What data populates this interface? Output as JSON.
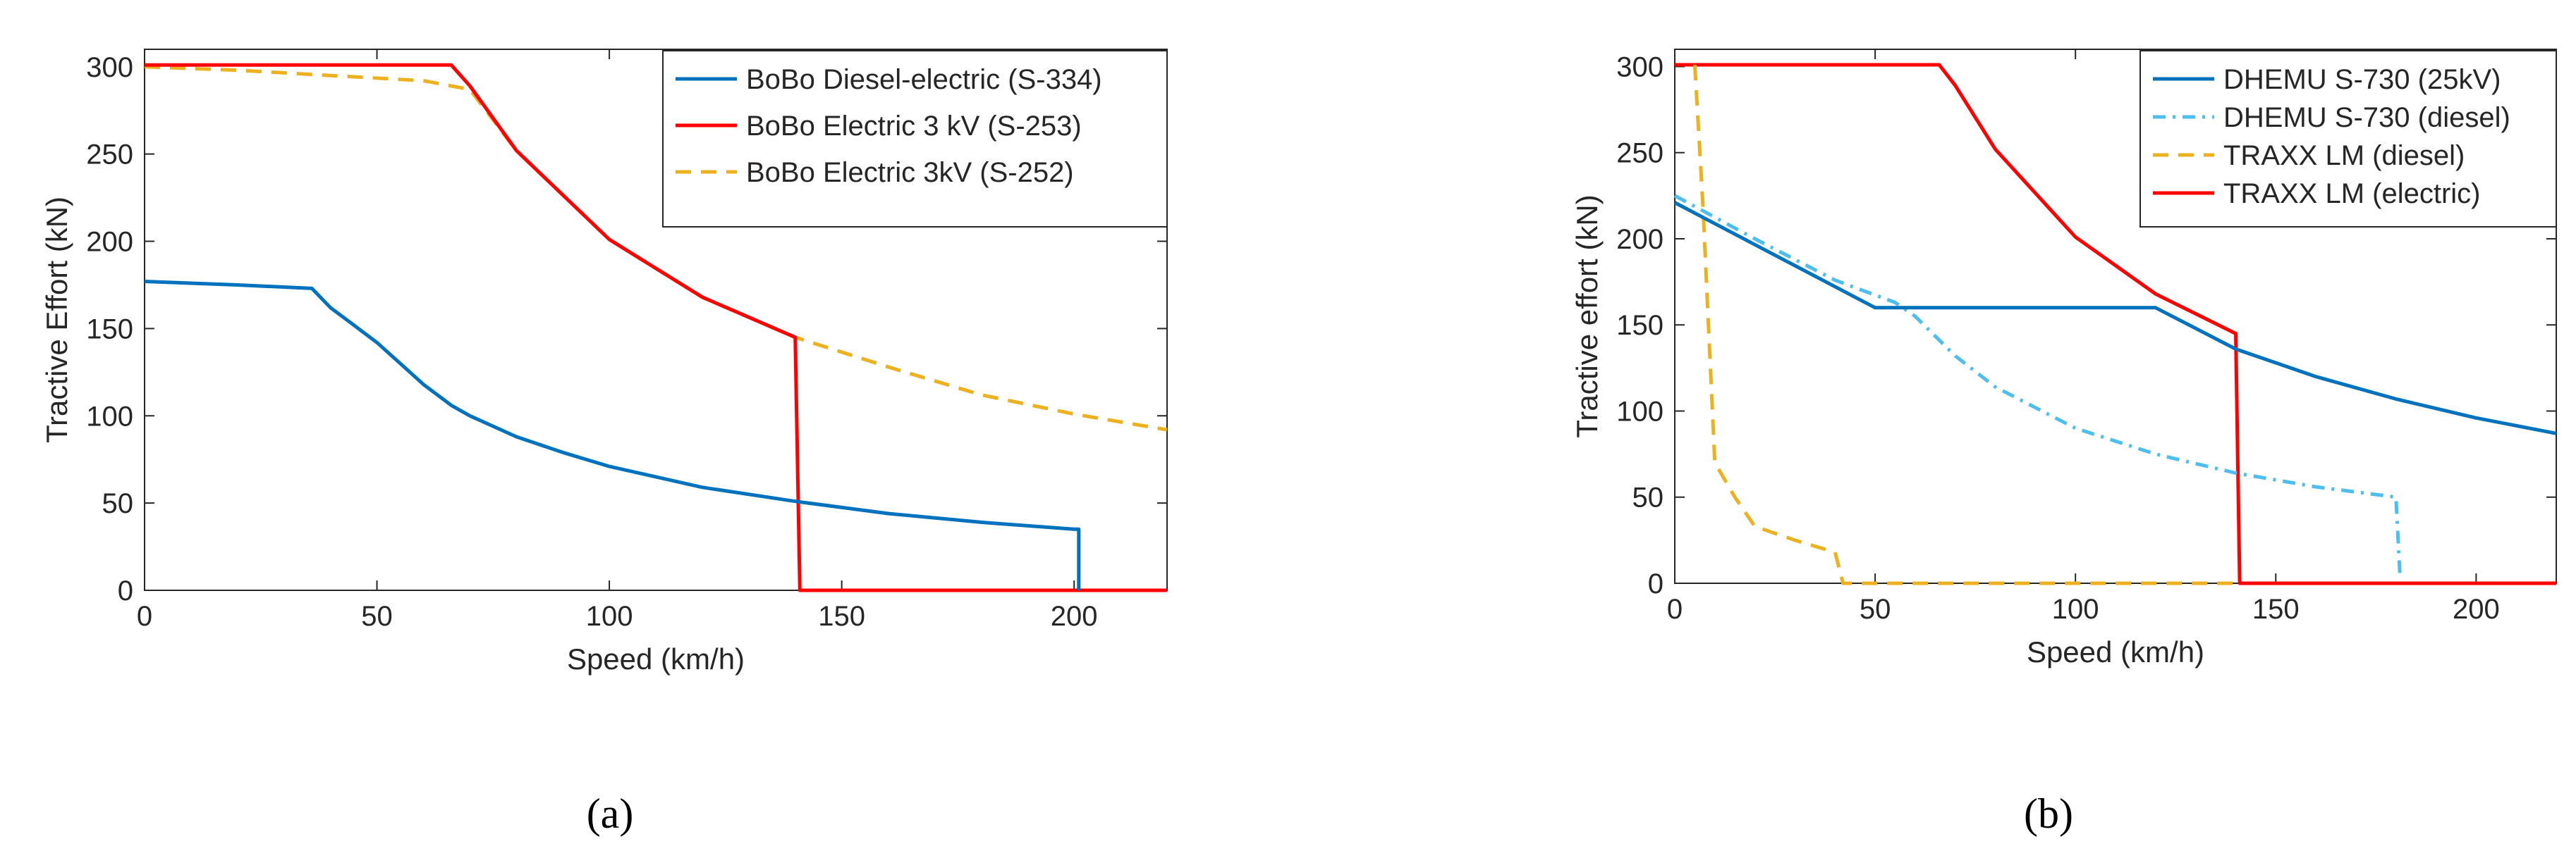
{
  "chart_data": [
    {
      "type": "line",
      "panel_label": "(a)",
      "xlabel": "Speed (km/h)",
      "ylabel": "Tractive Effort (kN)",
      "xlim": [
        0,
        220
      ],
      "ylim": [
        0,
        310
      ],
      "xticks": [
        0,
        50,
        100,
        150,
        200
      ],
      "yticks": [
        0,
        50,
        100,
        150,
        200,
        250,
        300
      ],
      "grid": false,
      "legend_position": "top-right",
      "series": [
        {
          "name": "BoBo Diesel-electric (S-334)",
          "color": "#0072BD",
          "style": "solid",
          "x": [
            0,
            20,
            36,
            40,
            45,
            50,
            55,
            60,
            66,
            70,
            80,
            90,
            100,
            120,
            140,
            160,
            180,
            200,
            201,
            201
          ],
          "y": [
            177,
            175,
            173,
            162,
            152,
            142,
            130,
            118,
            106,
            100,
            88,
            79,
            71,
            59,
            51,
            44,
            39,
            35,
            35,
            0
          ]
        },
        {
          "name": "BoBo Electric 3 kV (S-253)",
          "color": "#FF0000",
          "style": "solid",
          "x": [
            0,
            66,
            70,
            80,
            100,
            120,
            140,
            140,
            141,
            220
          ],
          "y": [
            301,
            301,
            289,
            252,
            201,
            168,
            145,
            145,
            0,
            0
          ]
        },
        {
          "name": "BoBo Electric 3kV (S-252)",
          "color": "#EDB120",
          "style": "dashed",
          "x": [
            0,
            20,
            40,
            60,
            70,
            80,
            100,
            120,
            140,
            160,
            180,
            200,
            220
          ],
          "y": [
            300,
            298,
            295,
            292,
            287,
            252,
            201,
            168,
            145,
            128,
            112,
            101,
            92
          ]
        }
      ]
    },
    {
      "type": "line",
      "panel_label": "(b)",
      "xlabel": "Speed (km/h)",
      "ylabel": "Tractive effort (kN)",
      "xlim": [
        0,
        220
      ],
      "ylim": [
        0,
        310
      ],
      "xticks": [
        0,
        50,
        100,
        150,
        200
      ],
      "yticks": [
        0,
        50,
        100,
        150,
        200,
        250,
        300
      ],
      "grid": false,
      "legend_position": "top-right",
      "series": [
        {
          "name": "DHEMU S-730 (25kV)",
          "color": "#0072BD",
          "style": "solid",
          "x": [
            0,
            50,
            120,
            140,
            160,
            180,
            200,
            220
          ],
          "y": [
            221,
            160,
            160,
            136,
            120,
            107,
            96,
            87
          ]
        },
        {
          "name": "DHEMU S-730 (diesel)",
          "color": "#4DBEEE",
          "style": "dashdot",
          "x": [
            0,
            20,
            40,
            55,
            60,
            70,
            80,
            100,
            120,
            140,
            160,
            180,
            181
          ],
          "y": [
            225,
            200,
            176,
            163,
            155,
            132,
            114,
            90,
            75,
            64,
            56,
            50,
            4
          ]
        },
        {
          "name": "TRAXX LM (diesel)",
          "color": "#EDB120",
          "style": "dashed",
          "x": [
            5,
            7,
            10,
            15,
            20,
            30,
            40,
            42,
            140
          ],
          "y": [
            301,
            220,
            70,
            50,
            33,
            25,
            18,
            0,
            0
          ]
        },
        {
          "name": "TRAXX LM (electric)",
          "color": "#FF0000",
          "style": "solid",
          "x": [
            0,
            66,
            70,
            80,
            100,
            120,
            140,
            140,
            141,
            220
          ],
          "y": [
            301,
            301,
            289,
            252,
            201,
            168,
            145,
            145,
            0,
            0
          ]
        }
      ]
    }
  ]
}
